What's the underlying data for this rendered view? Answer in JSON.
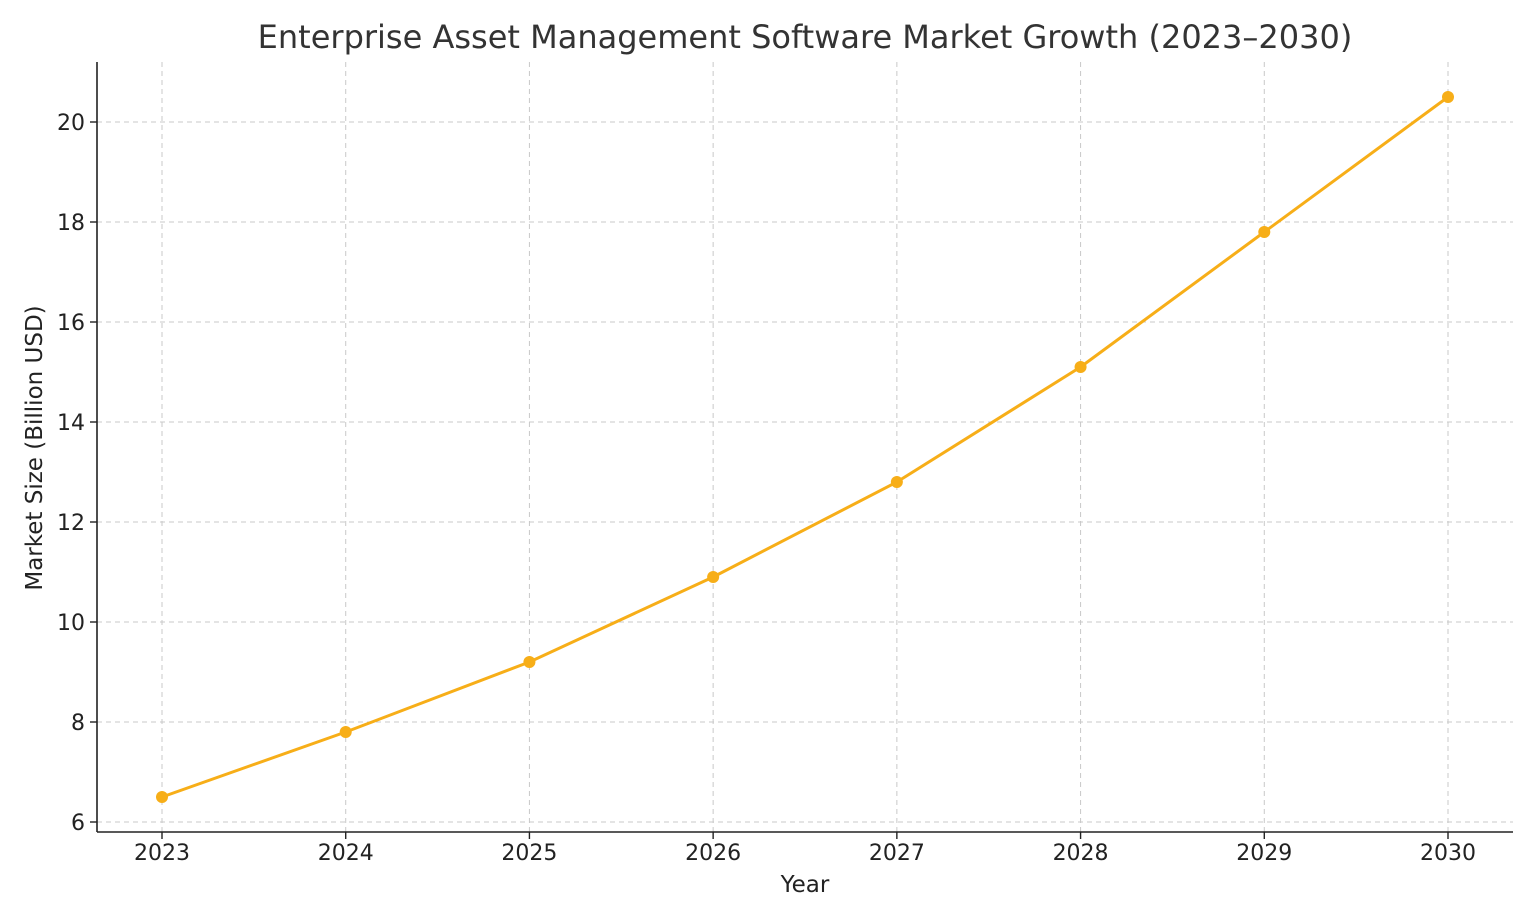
{
  "chart_data": {
    "type": "line",
    "title": "Enterprise Asset Management Software Market Growth (2023–2030)",
    "xlabel": "Year",
    "ylabel": "Market Size (Billion USD)",
    "x": [
      "2023",
      "2024",
      "2025",
      "2026",
      "2027",
      "2028",
      "2029",
      "2030"
    ],
    "series": [
      {
        "values": [
          6.5,
          7.8,
          9.2,
          10.9,
          12.8,
          15.1,
          17.8,
          20.5
        ],
        "color": "#f7ae18",
        "marker": "circle"
      }
    ],
    "ylim": [
      5.8,
      21.2
    ],
    "yticks": [
      6,
      8,
      10,
      12,
      14,
      16,
      18,
      20
    ],
    "grid": true,
    "legend": "none"
  }
}
